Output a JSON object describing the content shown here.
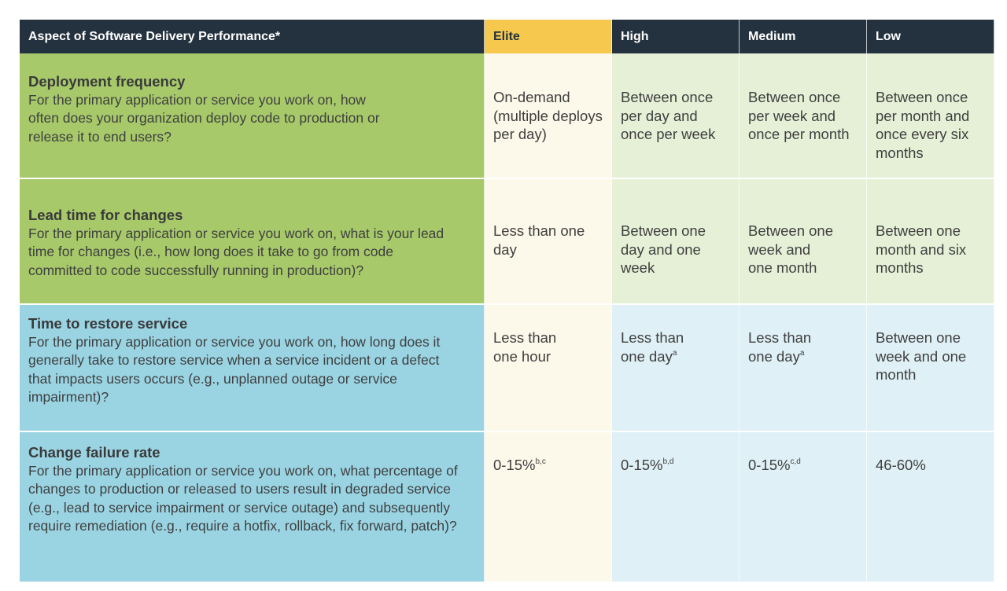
{
  "header": {
    "aspect": "Aspect of Software Delivery Performance*",
    "elite": "Elite",
    "high": "High",
    "medium": "Medium",
    "low": "Low"
  },
  "rows": [
    {
      "title": "Deployment frequency",
      "description": "For the primary application or service you work on, how often does your organization deploy code to production or release it to end users?",
      "elite": "On-demand (multiple deploys per day)",
      "high": "Between once per day and once per week",
      "medium": "Between once per week and once per month",
      "low": "Between once per month and once every six months"
    },
    {
      "title": "Lead time for changes",
      "description": "For the primary application or service you work on, what is your lead time for changes (i.e., how long does it take to go from code committed to code successfully running in production)?",
      "elite": "Less than one day",
      "high": "Between one day and one week",
      "medium": "Between one week and one month",
      "low": "Between one month and six months"
    },
    {
      "title": "Time to restore service",
      "description": "For the primary application or service you work on, how long does it generally take to restore service when a service incident or a defect that impacts users occurs (e.g., unplanned outage or service impairment)?",
      "elite": "Less than one hour",
      "high": "Less than one day",
      "high_sup": "a",
      "medium": "Less than one day",
      "medium_sup": "a",
      "low": "Between one week and one month"
    },
    {
      "title": "Change failure rate",
      "description": "For the primary application or service you work on, what percentage of changes to production or released to users result in degraded service (e.g., lead to service impairment or service outage) and subsequently require remediation (e.g., require a hotfix, rollback, fix forward, patch)?",
      "elite": "0-15%",
      "elite_sup": "b,c",
      "high": "0-15%",
      "high_sup": "b,d",
      "medium": "0-15%",
      "medium_sup": "c,d",
      "low": "46-60%"
    }
  ],
  "colors": {
    "header_bg": "#24323f",
    "elite_header_bg": "#f6c94e",
    "green_aspect": "#a7c96a",
    "blue_aspect": "#9ad4e3",
    "elite_cell": "#fcf9ea",
    "green_cell": "#e6f0d7",
    "blue_cell": "#dff0f6"
  }
}
